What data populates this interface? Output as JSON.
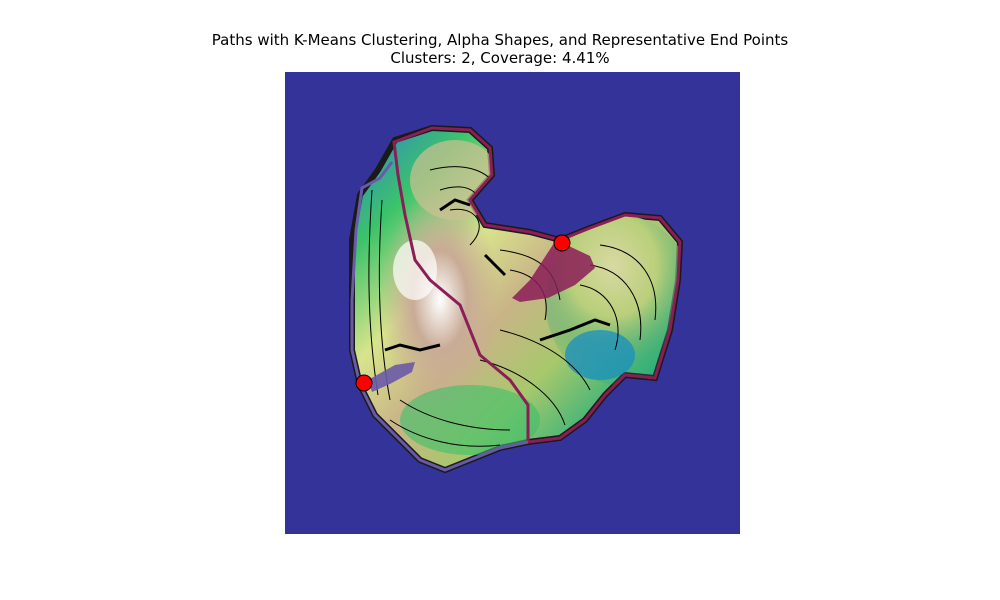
{
  "chart_data": {
    "type": "heatmap",
    "title_line1": "Paths with K-Means Clustering, Alpha Shapes, and Representative End Points",
    "title_line2": "Clusters: 2, Coverage: 4.41%",
    "axes_visible": false,
    "colors": {
      "background": "#343399",
      "cluster_1": "#8b1d57",
      "cluster_2": "#6a5aa6",
      "end_point_fill": "#ff0000",
      "contour": "#000000"
    },
    "clusters": [
      {
        "label": "1",
        "color": "#8b1d57"
      },
      {
        "label": "2",
        "color": "#6a5aa6"
      }
    ],
    "representative_end_points": [
      {
        "cluster": "1",
        "color": "#ff0000"
      },
      {
        "cluster": "2",
        "color": "#ff0000"
      }
    ]
  }
}
